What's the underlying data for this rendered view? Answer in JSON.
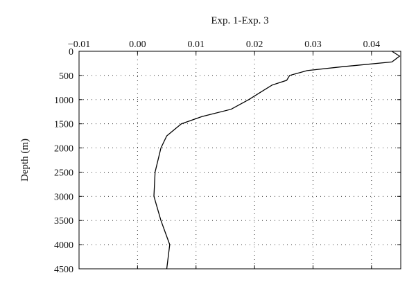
{
  "chart_data": {
    "type": "line",
    "title": "",
    "xlabel": "Exp. 1-Exp. 3",
    "ylabel": "Depth (m)",
    "xlim": [
      -0.01,
      0.045
    ],
    "ylim": [
      0,
      4500
    ],
    "y_inverted": true,
    "x_axis_position": "top",
    "grid": true,
    "x_ticks": [
      -0.01,
      0.0,
      0.01,
      0.02,
      0.03,
      0.04
    ],
    "x_tick_labels": [
      "−0.01",
      "0.00",
      "0.01",
      "0.02",
      "0.03",
      "0.04"
    ],
    "y_ticks": [
      0,
      500,
      1000,
      1500,
      2000,
      2500,
      3000,
      3500,
      4000,
      4500
    ],
    "y_tick_labels": [
      "0",
      "500",
      "1000",
      "1500",
      "2000",
      "2500",
      "3000",
      "3500",
      "4000",
      "4500"
    ],
    "series": [
      {
        "name": "",
        "points": [
          {
            "x": 0.0435,
            "y": 0
          },
          {
            "x": 0.0448,
            "y": 100
          },
          {
            "x": 0.0435,
            "y": 220
          },
          {
            "x": 0.035,
            "y": 320
          },
          {
            "x": 0.029,
            "y": 400
          },
          {
            "x": 0.026,
            "y": 500
          },
          {
            "x": 0.0255,
            "y": 600
          },
          {
            "x": 0.023,
            "y": 700
          },
          {
            "x": 0.021,
            "y": 850
          },
          {
            "x": 0.019,
            "y": 1000
          },
          {
            "x": 0.016,
            "y": 1200
          },
          {
            "x": 0.011,
            "y": 1350
          },
          {
            "x": 0.0075,
            "y": 1500
          },
          {
            "x": 0.005,
            "y": 1750
          },
          {
            "x": 0.004,
            "y": 2000
          },
          {
            "x": 0.003,
            "y": 2500
          },
          {
            "x": 0.0028,
            "y": 3000
          },
          {
            "x": 0.004,
            "y": 3500
          },
          {
            "x": 0.0055,
            "y": 4000
          },
          {
            "x": 0.005,
            "y": 4500
          }
        ]
      }
    ]
  }
}
